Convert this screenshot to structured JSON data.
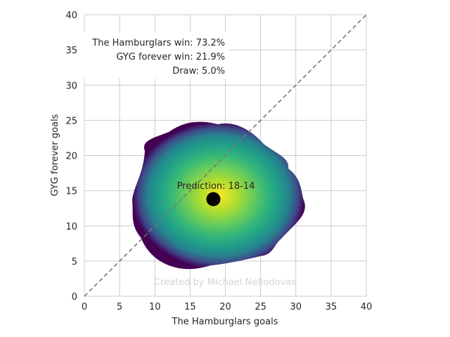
{
  "chart_data": {
    "type": "heatmap",
    "xlabel": "The Hamburglars goals",
    "ylabel": "GYG forever goals",
    "xlim": [
      0,
      40
    ],
    "ylim": [
      0,
      40
    ],
    "xticks": [
      0,
      5,
      10,
      15,
      20,
      25,
      30,
      35,
      40
    ],
    "yticks": [
      0,
      5,
      10,
      15,
      20,
      25,
      30,
      35,
      40
    ],
    "grid": true,
    "colormap": "viridis",
    "density_center": [
      17,
      12
    ],
    "prediction_point": {
      "x": 18.3,
      "y": 13.8,
      "label": "Prediction: 18-14"
    },
    "reference_line": {
      "from": [
        0,
        0
      ],
      "to": [
        40,
        40
      ],
      "style": "dashed",
      "color": "#777777"
    },
    "stats": [
      "The Hamburglars win: 73.2%",
      "GYG forever win: 21.9%",
      "Draw: 5.0%"
    ],
    "credit": "Created by Michael Nefiodovas"
  }
}
